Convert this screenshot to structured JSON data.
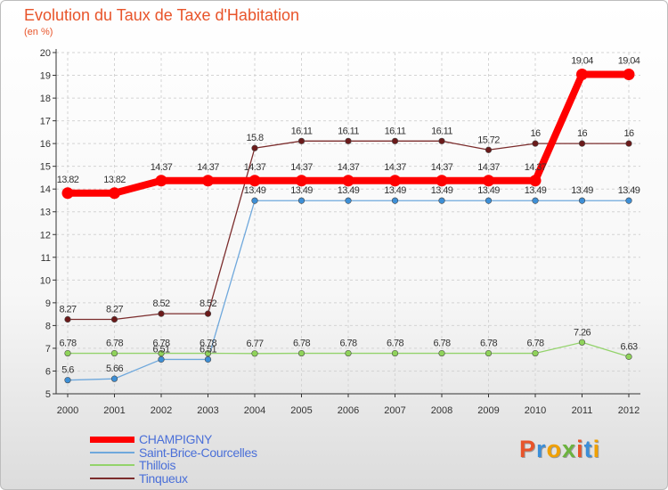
{
  "chart_data": {
    "type": "line",
    "title": "Evolution du Taux de Taxe d'Habitation",
    "subtitle": "(en %)",
    "x": [
      "2000",
      "2001",
      "2002",
      "2003",
      "2004",
      "2005",
      "2006",
      "2007",
      "2008",
      "2009",
      "2010",
      "2011",
      "2012"
    ],
    "ylim": [
      5,
      20
    ],
    "yticks": [
      5,
      6,
      7,
      8,
      9,
      10,
      11,
      12,
      13,
      14,
      15,
      16,
      17,
      18,
      19,
      20
    ],
    "grid": true,
    "legend_position": "bottom-left",
    "series": [
      {
        "name": "CHAMPIGNY",
        "color": "#ff0000",
        "values": [
          13.82,
          13.82,
          14.37,
          14.37,
          14.37,
          14.37,
          14.37,
          14.37,
          14.37,
          14.37,
          14.37,
          19.04,
          19.04
        ],
        "labels": [
          "13.82",
          "13.82",
          "14.37",
          "14.37",
          "14.37",
          "14.37",
          "14.37",
          "14.37",
          "14.37",
          "14.37",
          "14.37",
          "19.04",
          "19.04"
        ]
      },
      {
        "name": "Saint-Brice-Courcelles",
        "color": "#6fa8dc",
        "values": [
          5.6,
          5.66,
          6.51,
          6.51,
          13.49,
          13.49,
          13.49,
          13.49,
          13.49,
          13.49,
          13.49,
          13.49,
          13.49
        ],
        "labels": [
          "5.6",
          "5.66",
          "6.51",
          "6.51",
          "13.49",
          "13.49",
          "13.49",
          "13.49",
          "13.49",
          "13.49",
          "13.49",
          "13.49",
          "13.49"
        ]
      },
      {
        "name": "Thillois",
        "color": "#93d36b",
        "values": [
          6.78,
          6.78,
          6.78,
          6.78,
          6.77,
          6.78,
          6.78,
          6.78,
          6.78,
          6.78,
          6.78,
          7.26,
          6.63
        ],
        "labels": [
          "6.78",
          "6.78",
          "6.78",
          "6.78",
          "6.77",
          "6.78",
          "6.78",
          "6.78",
          "6.78",
          "6.78",
          "6.78",
          "7.26",
          "6.63"
        ]
      },
      {
        "name": "Tinqueux",
        "color": "#7b2c2c",
        "values": [
          8.27,
          8.27,
          8.52,
          8.52,
          15.8,
          16.11,
          16.11,
          16.11,
          16.11,
          15.72,
          16,
          16,
          16
        ],
        "labels": [
          "8.27",
          "8.27",
          "8.52",
          "8.52",
          "15.8",
          "16.11",
          "16.11",
          "16.11",
          "16.11",
          "15.72",
          "16",
          "16",
          "16"
        ]
      }
    ]
  },
  "logo": {
    "letters": [
      "P",
      "r",
      "o",
      "x",
      "i",
      "t",
      "i"
    ]
  }
}
